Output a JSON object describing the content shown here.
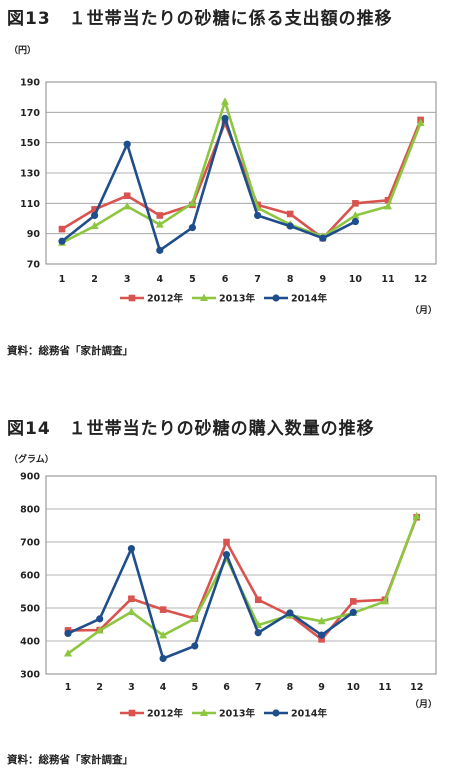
{
  "figures": [
    {
      "title": "図13　１世帯当たりの砂糖に係る支出額の推移",
      "y_unit": "（円）",
      "x_unit": "（月）",
      "source": "資料：総務省「家計調査」"
    },
    {
      "title": "図14　１世帯当たりの砂糖の購入数量の推移",
      "y_unit": "（グラム）",
      "x_unit": "（月）",
      "source": "資料：総務省「家計調査」"
    }
  ],
  "chart_data": [
    {
      "type": "line",
      "title": "図13　１世帯当たりの砂糖に係る支出額の推移",
      "ylabel": "（円）",
      "xlabel": "（月）",
      "categories": [
        "1",
        "2",
        "3",
        "4",
        "5",
        "6",
        "7",
        "8",
        "9",
        "10",
        "11",
        "12"
      ],
      "ylim": [
        70,
        190
      ],
      "yticks": [
        70,
        90,
        110,
        130,
        150,
        170,
        190
      ],
      "grid": true,
      "legend": "bottom",
      "series": [
        {
          "name": "2012年",
          "color": "#d9534f",
          "marker": "square",
          "values": [
            93,
            106,
            115,
            102,
            109,
            163,
            109,
            103,
            87,
            110,
            112,
            165
          ]
        },
        {
          "name": "2013年",
          "color": "#8dc63f",
          "marker": "triangle",
          "values": [
            84,
            95,
            108,
            96,
            110,
            177,
            107,
            96,
            88,
            102,
            108,
            163
          ]
        },
        {
          "name": "2014年",
          "color": "#1f4e8c",
          "marker": "circle",
          "values": [
            85,
            102,
            149,
            79,
            94,
            166,
            102,
            95,
            87,
            98,
            null,
            null
          ]
        }
      ]
    },
    {
      "type": "line",
      "title": "図14　１世帯当たりの砂糖の購入数量の推移",
      "ylabel": "（グラム）",
      "xlabel": "（月）",
      "categories": [
        "1",
        "2",
        "3",
        "4",
        "5",
        "6",
        "7",
        "8",
        "9",
        "10",
        "11",
        "12"
      ],
      "ylim": [
        300,
        900
      ],
      "yticks": [
        300,
        400,
        500,
        600,
        700,
        800,
        900
      ],
      "grid": true,
      "legend": "bottom",
      "series": [
        {
          "name": "2012年",
          "color": "#d9534f",
          "marker": "square",
          "values": [
            432,
            433,
            528,
            495,
            468,
            700,
            525,
            478,
            405,
            520,
            525,
            775
          ]
        },
        {
          "name": "2013年",
          "color": "#8dc63f",
          "marker": "triangle",
          "values": [
            362,
            432,
            488,
            417,
            468,
            650,
            448,
            478,
            460,
            485,
            520,
            778
          ]
        },
        {
          "name": "2014年",
          "color": "#1f4e8c",
          "marker": "circle",
          "values": [
            423,
            467,
            680,
            347,
            385,
            662,
            425,
            485,
            418,
            487,
            null,
            null
          ]
        }
      ]
    }
  ]
}
